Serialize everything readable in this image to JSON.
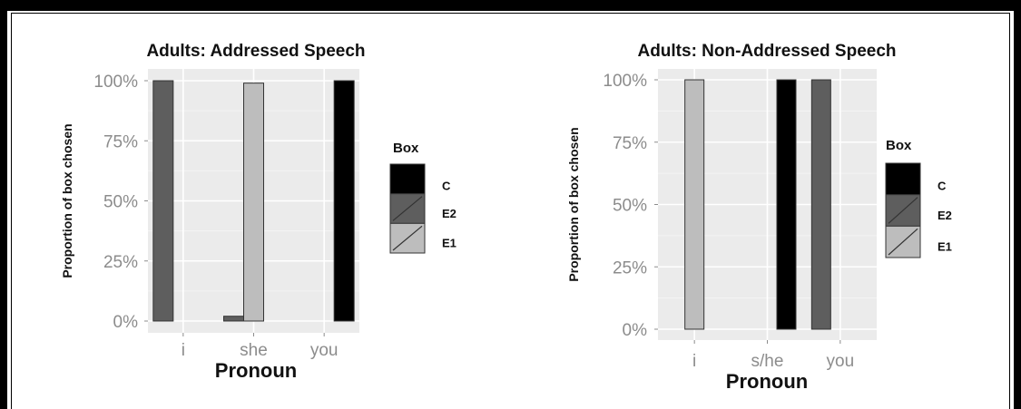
{
  "colors": {
    "panel_bg": "#ebebeb",
    "grid_major": "#ffffff",
    "C": "#000000",
    "E2": "#5e5e5e",
    "E1": "#bdbdbd",
    "outline": "#333333"
  },
  "legend": {
    "title": "Box",
    "items": [
      {
        "key": "C",
        "label": "C"
      },
      {
        "key": "E2",
        "label": "E2"
      },
      {
        "key": "E1",
        "label": "E1"
      }
    ]
  },
  "chart_data": [
    {
      "type": "bar",
      "title": "Adults: Addressed Speech",
      "xlabel": "Pronoun",
      "ylabel": "Proportion of box chosen",
      "y_tick_labels": [
        "0%",
        "25%",
        "50%",
        "75%",
        "100%"
      ],
      "y_ticks": [
        0,
        0.25,
        0.5,
        0.75,
        1.0
      ],
      "ylim": [
        0,
        1
      ],
      "categories": [
        "i",
        "she",
        "you"
      ],
      "series_order": [
        "E2",
        "E1",
        "C"
      ],
      "series": [
        {
          "name": "E2",
          "values": [
            1.0,
            0.02,
            0.0
          ]
        },
        {
          "name": "E1",
          "values": [
            0.0,
            0.99,
            0.0
          ]
        },
        {
          "name": "C",
          "values": [
            0.0,
            0.0,
            1.0
          ]
        }
      ],
      "legend_position": "right"
    },
    {
      "type": "bar",
      "title": "Adults: Non-Addressed Speech",
      "xlabel": "Pronoun",
      "ylabel": "Proportion of box chosen",
      "y_tick_labels": [
        "0%",
        "25%",
        "50%",
        "75%",
        "100%"
      ],
      "y_ticks": [
        0,
        0.25,
        0.5,
        0.75,
        1.0
      ],
      "ylim": [
        0,
        1
      ],
      "categories": [
        "i",
        "s/he",
        "you"
      ],
      "series_order": [
        "E2",
        "E1",
        "C"
      ],
      "series": [
        {
          "name": "E2",
          "values": [
            0.0,
            0.0,
            1.0
          ]
        },
        {
          "name": "E1",
          "values": [
            1.0,
            0.0,
            0.0
          ]
        },
        {
          "name": "C",
          "values": [
            0.0,
            1.0,
            0.0
          ]
        }
      ],
      "legend_position": "right"
    }
  ]
}
